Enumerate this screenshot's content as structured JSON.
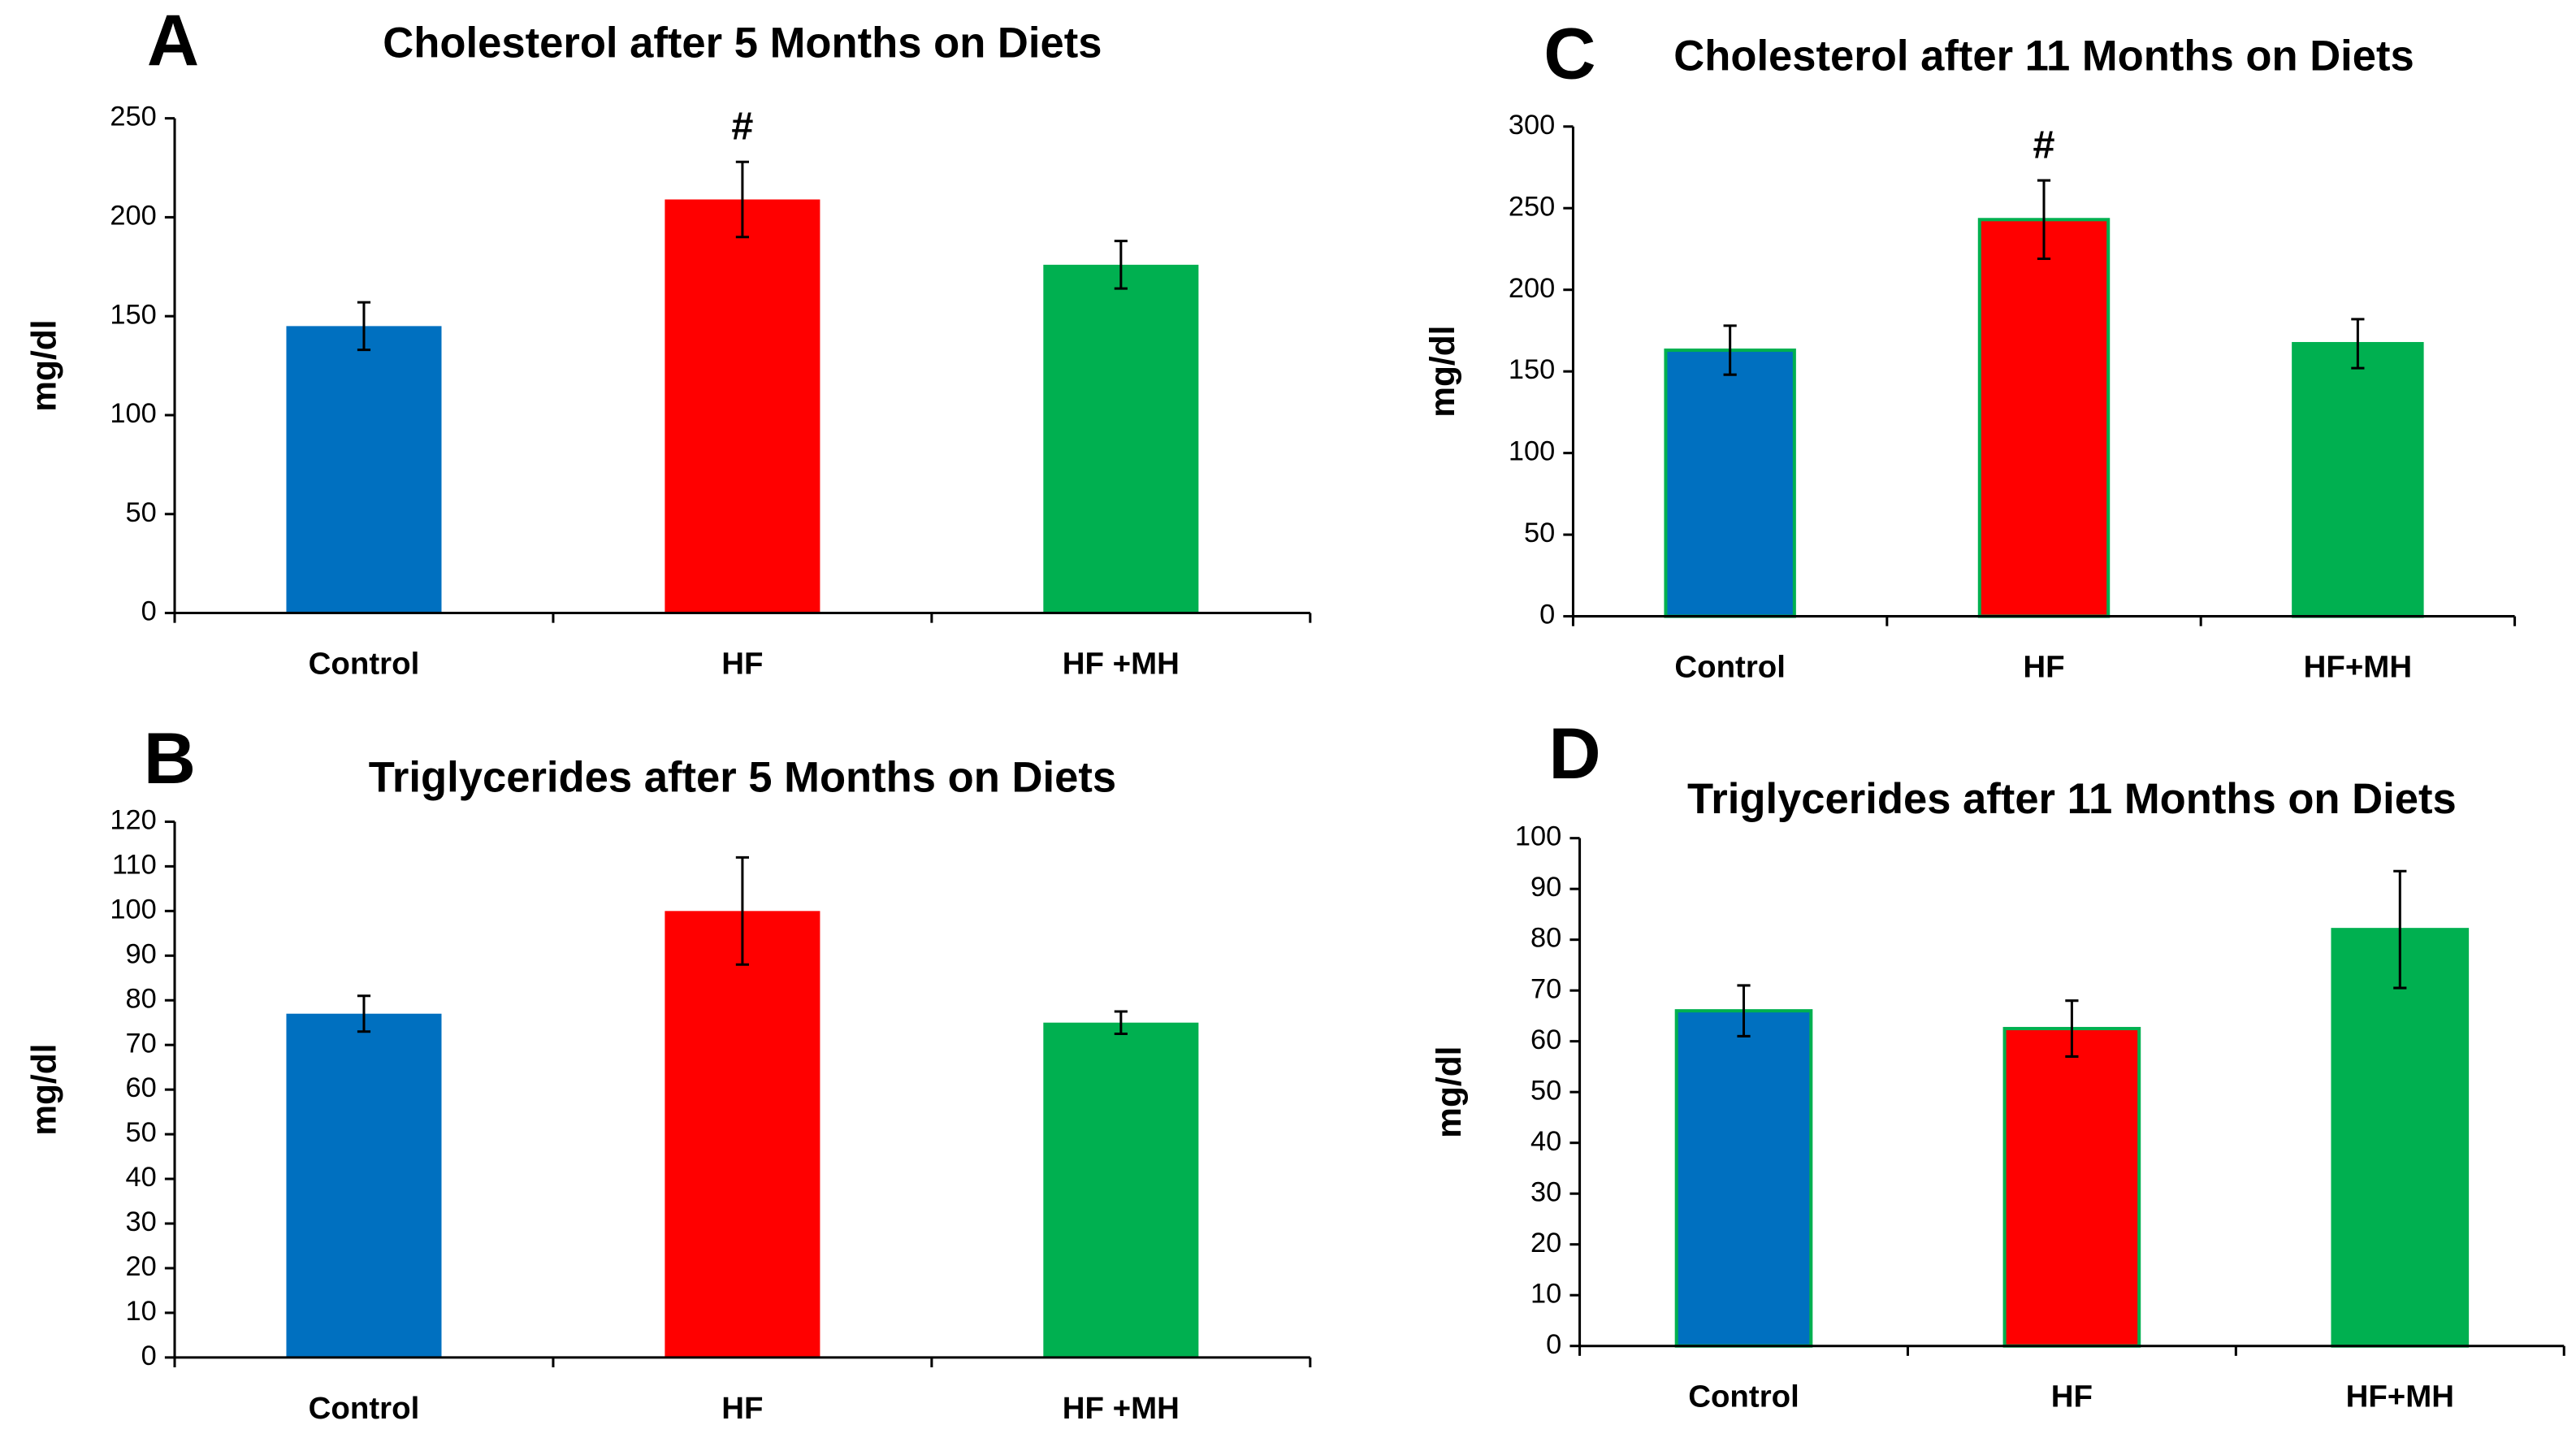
{
  "chart_data": [
    {
      "type": "bar",
      "panel": "A",
      "title": "Cholesterol after 5 Months on Diets",
      "ylabel": "mg/dl",
      "categories": [
        "Control",
        "HF",
        "HF +MH"
      ],
      "values": [
        145,
        209,
        176
      ],
      "errors": [
        12,
        19,
        12
      ],
      "colors": [
        "#0070c0",
        "#ff0000",
        "#00b050"
      ],
      "ylim": [
        0,
        250
      ],
      "yticks": [
        0,
        50,
        100,
        150,
        200,
        250
      ],
      "annotations": [
        {
          "text": "#",
          "category": "HF"
        }
      ]
    },
    {
      "type": "bar",
      "panel": "B",
      "title": "Triglycerides after 5 Months on Diets",
      "ylabel": "mg/dl",
      "categories": [
        "Control",
        "HF",
        "HF +MH"
      ],
      "values": [
        77,
        100,
        75
      ],
      "errors": [
        4,
        12,
        2.5
      ],
      "colors": [
        "#0070c0",
        "#ff0000",
        "#00b050"
      ],
      "ylim": [
        0,
        120
      ],
      "yticks": [
        0,
        10,
        20,
        30,
        40,
        50,
        60,
        70,
        80,
        90,
        100,
        110,
        120
      ]
    },
    {
      "type": "bar",
      "panel": "C",
      "title": "Cholesterol after 11 Months on Diets",
      "ylabel": "mg/dl",
      "categories": [
        "Control",
        "HF",
        "HF+MH"
      ],
      "values": [
        163,
        243,
        167
      ],
      "errors": [
        15,
        24,
        15
      ],
      "colors": [
        "#0070c0",
        "#ff0000",
        "#00b050"
      ],
      "bar_stroke": "#00b050",
      "ylim": [
        0,
        300
      ],
      "yticks": [
        0,
        50,
        100,
        150,
        200,
        250,
        300
      ],
      "annotations": [
        {
          "text": "#",
          "category": "HF"
        }
      ]
    },
    {
      "type": "bar",
      "panel": "D",
      "title": "Triglycerides after 11 Months on Diets",
      "ylabel": "mg/dl",
      "categories": [
        "Control",
        "HF",
        "HF+MH"
      ],
      "values": [
        66,
        62.5,
        82
      ],
      "errors": [
        5,
        5.5,
        11.5
      ],
      "colors": [
        "#0070c0",
        "#ff0000",
        "#00b050"
      ],
      "bar_stroke": "#00b050",
      "ylim": [
        0,
        100
      ],
      "yticks": [
        0,
        10,
        20,
        30,
        40,
        50,
        60,
        70,
        80,
        90,
        100
      ]
    }
  ]
}
